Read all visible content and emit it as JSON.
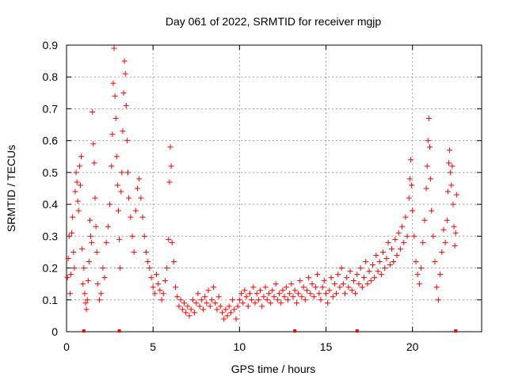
{
  "chart_data": {
    "type": "scatter",
    "title": "Day 061 of 2022, SRMTID for receiver mgjp",
    "xlabel": "GPS time / hours",
    "ylabel": "SRMTID / TECUs",
    "xlim": [
      0,
      24
    ],
    "ylim": [
      0,
      0.9
    ],
    "grid": true,
    "marker": "+",
    "color": "#ff0000",
    "x_ticks": [
      {
        "value": 0,
        "label": "0"
      },
      {
        "value": 5,
        "label": "5"
      },
      {
        "value": 10,
        "label": "10"
      },
      {
        "value": 15,
        "label": "15"
      },
      {
        "value": 20,
        "label": "20"
      }
    ],
    "y_ticks": [
      {
        "value": 0,
        "label": "0"
      },
      {
        "value": 0.1,
        "label": "0.1"
      },
      {
        "value": 0.2,
        "label": "0.2"
      },
      {
        "value": 0.3,
        "label": "0.3"
      },
      {
        "value": 0.4,
        "label": "0.4"
      },
      {
        "value": 0.5,
        "label": "0.5"
      },
      {
        "value": 0.6,
        "label": "0.6"
      },
      {
        "value": 0.7,
        "label": "0.7"
      },
      {
        "value": 0.8,
        "label": "0.8"
      },
      {
        "value": 0.9,
        "label": "0.9"
      }
    ],
    "baseline_marks": [
      1.0,
      3.05,
      13.2,
      16.8,
      22.5
    ],
    "series": [
      {
        "name": "SRMTID",
        "points": [
          [
            0.05,
            0.17
          ],
          [
            0.1,
            0.23
          ],
          [
            0.15,
            0.3
          ],
          [
            0.2,
            0.12
          ],
          [
            0.25,
            0.18
          ],
          [
            0.3,
            0.31
          ],
          [
            0.35,
            0.36
          ],
          [
            0.4,
            0.25
          ],
          [
            0.45,
            0.2
          ],
          [
            0.5,
            0.44
          ],
          [
            0.55,
            0.5
          ],
          [
            0.6,
            0.47
          ],
          [
            0.65,
            0.41
          ],
          [
            0.7,
            0.38
          ],
          [
            0.75,
            0.52
          ],
          [
            0.8,
            0.46
          ],
          [
            0.85,
            0.55
          ],
          [
            0.9,
            0.26
          ],
          [
            0.95,
            0.15
          ],
          [
            1.0,
            0.2
          ],
          [
            1.05,
            0.12
          ],
          [
            1.1,
            0.09
          ],
          [
            1.15,
            0.07
          ],
          [
            1.2,
            0.1
          ],
          [
            1.25,
            0.16
          ],
          [
            1.3,
            0.22
          ],
          [
            1.35,
            0.35
          ],
          [
            1.4,
            0.3
          ],
          [
            1.45,
            0.28
          ],
          [
            1.5,
            0.69
          ],
          [
            1.55,
            0.59
          ],
          [
            1.6,
            0.53
          ],
          [
            1.65,
            0.42
          ],
          [
            1.7,
            0.33
          ],
          [
            1.75,
            0.25
          ],
          [
            1.8,
            0.15
          ],
          [
            1.9,
            0.1
          ],
          [
            2.0,
            0.12
          ],
          [
            2.1,
            0.2
          ],
          [
            2.2,
            0.17
          ],
          [
            2.3,
            0.28
          ],
          [
            2.4,
            0.33
          ],
          [
            2.5,
            0.4
          ],
          [
            2.6,
            0.52
          ],
          [
            2.65,
            0.62
          ],
          [
            2.7,
            0.78
          ],
          [
            2.75,
            0.89
          ],
          [
            2.8,
            0.74
          ],
          [
            2.85,
            0.67
          ],
          [
            2.9,
            0.55
          ],
          [
            2.95,
            0.46
          ],
          [
            3.0,
            0.38
          ],
          [
            3.05,
            0.29
          ],
          [
            3.1,
            0.2
          ],
          [
            3.15,
            0.44
          ],
          [
            3.2,
            0.5
          ],
          [
            3.25,
            0.63
          ],
          [
            3.3,
            0.75
          ],
          [
            3.35,
            0.85
          ],
          [
            3.4,
            0.81
          ],
          [
            3.45,
            0.71
          ],
          [
            3.5,
            0.6
          ],
          [
            3.55,
            0.5
          ],
          [
            3.6,
            0.42
          ],
          [
            3.7,
            0.36
          ],
          [
            3.8,
            0.3
          ],
          [
            3.9,
            0.25
          ],
          [
            4.0,
            0.38
          ],
          [
            4.1,
            0.45
          ],
          [
            4.2,
            0.48
          ],
          [
            4.3,
            0.42
          ],
          [
            4.4,
            0.36
          ],
          [
            4.5,
            0.3
          ],
          [
            4.6,
            0.25
          ],
          [
            4.7,
            0.22
          ],
          [
            4.8,
            0.2
          ],
          [
            4.9,
            0.17
          ],
          [
            5.0,
            0.14
          ],
          [
            5.1,
            0.12
          ],
          [
            5.2,
            0.18
          ],
          [
            5.3,
            0.15
          ],
          [
            5.4,
            0.13
          ],
          [
            5.5,
            0.1
          ],
          [
            5.6,
            0.12
          ],
          [
            5.7,
            0.16
          ],
          [
            5.8,
            0.2
          ],
          [
            5.9,
            0.29
          ],
          [
            5.95,
            0.47
          ],
          [
            6.0,
            0.58
          ],
          [
            6.05,
            0.52
          ],
          [
            6.1,
            0.28
          ],
          [
            6.2,
            0.22
          ],
          [
            6.3,
            0.14
          ],
          [
            6.4,
            0.11
          ],
          [
            6.5,
            0.08
          ],
          [
            6.6,
            0.1
          ],
          [
            6.7,
            0.07
          ],
          [
            6.8,
            0.09
          ],
          [
            6.9,
            0.06
          ],
          [
            7.0,
            0.08
          ],
          [
            7.1,
            0.05
          ],
          [
            7.2,
            0.07
          ],
          [
            7.3,
            0.1
          ],
          [
            7.4,
            0.06
          ],
          [
            7.5,
            0.09
          ],
          [
            7.6,
            0.12
          ],
          [
            7.7,
            0.08
          ],
          [
            7.8,
            0.1
          ],
          [
            7.9,
            0.07
          ],
          [
            8.0,
            0.11
          ],
          [
            8.1,
            0.09
          ],
          [
            8.2,
            0.13
          ],
          [
            8.3,
            0.08
          ],
          [
            8.4,
            0.1
          ],
          [
            8.5,
            0.14
          ],
          [
            8.6,
            0.09
          ],
          [
            8.7,
            0.07
          ],
          [
            8.8,
            0.11
          ],
          [
            8.9,
            0.08
          ],
          [
            9.0,
            0.06
          ],
          [
            9.1,
            0.04
          ],
          [
            9.2,
            0.07
          ],
          [
            9.3,
            0.05
          ],
          [
            9.4,
            0.08
          ],
          [
            9.5,
            0.06
          ],
          [
            9.6,
            0.1
          ],
          [
            9.7,
            0.07
          ],
          [
            9.8,
            0.04
          ],
          [
            9.9,
            0.08
          ],
          [
            10.0,
            0.1
          ],
          [
            10.1,
            0.12
          ],
          [
            10.2,
            0.09
          ],
          [
            10.3,
            0.13
          ],
          [
            10.4,
            0.11
          ],
          [
            10.5,
            0.08
          ],
          [
            10.6,
            0.12
          ],
          [
            10.7,
            0.1
          ],
          [
            10.8,
            0.14
          ],
          [
            10.9,
            0.09
          ],
          [
            11.0,
            0.12
          ],
          [
            11.1,
            0.1
          ],
          [
            11.2,
            0.13
          ],
          [
            11.3,
            0.08
          ],
          [
            11.4,
            0.11
          ],
          [
            11.5,
            0.14
          ],
          [
            11.6,
            0.1
          ],
          [
            11.7,
            0.12
          ],
          [
            11.8,
            0.09
          ],
          [
            11.9,
            0.13
          ],
          [
            12.0,
            0.11
          ],
          [
            12.1,
            0.15
          ],
          [
            12.2,
            0.1
          ],
          [
            12.3,
            0.12
          ],
          [
            12.4,
            0.09
          ],
          [
            12.5,
            0.13
          ],
          [
            12.6,
            0.11
          ],
          [
            12.7,
            0.14
          ],
          [
            12.8,
            0.1
          ],
          [
            12.9,
            0.12
          ],
          [
            13.0,
            0.15
          ],
          [
            13.1,
            0.11
          ],
          [
            13.2,
            0.13
          ],
          [
            13.3,
            0.09
          ],
          [
            13.4,
            0.12
          ],
          [
            13.5,
            0.16
          ],
          [
            13.6,
            0.11
          ],
          [
            13.7,
            0.14
          ],
          [
            13.8,
            0.1
          ],
          [
            13.9,
            0.13
          ],
          [
            14.0,
            0.17
          ],
          [
            14.1,
            0.12
          ],
          [
            14.2,
            0.15
          ],
          [
            14.3,
            0.11
          ],
          [
            14.4,
            0.14
          ],
          [
            14.5,
            0.18
          ],
          [
            14.6,
            0.12
          ],
          [
            14.7,
            0.1
          ],
          [
            14.8,
            0.14
          ],
          [
            14.9,
            0.16
          ],
          [
            15.0,
            0.12
          ],
          [
            15.1,
            0.09
          ],
          [
            15.2,
            0.13
          ],
          [
            15.3,
            0.17
          ],
          [
            15.4,
            0.11
          ],
          [
            15.5,
            0.15
          ],
          [
            15.6,
            0.12
          ],
          [
            15.7,
            0.18
          ],
          [
            15.8,
            0.14
          ],
          [
            15.9,
            0.2
          ],
          [
            16.0,
            0.15
          ],
          [
            16.1,
            0.12
          ],
          [
            16.2,
            0.17
          ],
          [
            16.3,
            0.14
          ],
          [
            16.4,
            0.19
          ],
          [
            16.5,
            0.13
          ],
          [
            16.6,
            0.16
          ],
          [
            16.7,
            0.12
          ],
          [
            16.8,
            0.18
          ],
          [
            16.9,
            0.15
          ],
          [
            17.0,
            0.2
          ],
          [
            17.1,
            0.14
          ],
          [
            17.2,
            0.17
          ],
          [
            17.3,
            0.22
          ],
          [
            17.4,
            0.15
          ],
          [
            17.5,
            0.19
          ],
          [
            17.6,
            0.16
          ],
          [
            17.7,
            0.21
          ],
          [
            17.8,
            0.17
          ],
          [
            17.9,
            0.24
          ],
          [
            18.0,
            0.19
          ],
          [
            18.1,
            0.22
          ],
          [
            18.2,
            0.18
          ],
          [
            18.3,
            0.25
          ],
          [
            18.4,
            0.2
          ],
          [
            18.5,
            0.23
          ],
          [
            18.6,
            0.28
          ],
          [
            18.7,
            0.21
          ],
          [
            18.8,
            0.26
          ],
          [
            18.9,
            0.22
          ],
          [
            19.0,
            0.29
          ],
          [
            19.1,
            0.24
          ],
          [
            19.2,
            0.31
          ],
          [
            19.3,
            0.26
          ],
          [
            19.4,
            0.33
          ],
          [
            19.5,
            0.28
          ],
          [
            19.6,
            0.36
          ],
          [
            19.7,
            0.3
          ],
          [
            19.8,
            0.42
          ],
          [
            19.85,
            0.48
          ],
          [
            19.9,
            0.54
          ],
          [
            19.95,
            0.46
          ],
          [
            20.0,
            0.38
          ],
          [
            20.1,
            0.3
          ],
          [
            20.2,
            0.22
          ],
          [
            20.3,
            0.18
          ],
          [
            20.4,
            0.15
          ],
          [
            20.5,
            0.2
          ],
          [
            20.6,
            0.28
          ],
          [
            20.7,
            0.35
          ],
          [
            20.8,
            0.45
          ],
          [
            20.85,
            0.52
          ],
          [
            20.9,
            0.6
          ],
          [
            20.95,
            0.67
          ],
          [
            21.0,
            0.58
          ],
          [
            21.05,
            0.48
          ],
          [
            21.1,
            0.38
          ],
          [
            21.2,
            0.3
          ],
          [
            21.3,
            0.22
          ],
          [
            21.4,
            0.14
          ],
          [
            21.5,
            0.1
          ],
          [
            21.6,
            0.18
          ],
          [
            21.7,
            0.25
          ],
          [
            21.8,
            0.32
          ],
          [
            21.9,
            0.28
          ],
          [
            22.0,
            0.35
          ],
          [
            22.05,
            0.44
          ],
          [
            22.1,
            0.53
          ],
          [
            22.15,
            0.57
          ],
          [
            22.2,
            0.5
          ],
          [
            22.25,
            0.46
          ],
          [
            22.3,
            0.52
          ],
          [
            22.35,
            0.4
          ],
          [
            22.4,
            0.33
          ],
          [
            22.45,
            0.27
          ],
          [
            22.5,
            0.31
          ],
          [
            22.55,
            0.43
          ]
        ]
      }
    ]
  }
}
